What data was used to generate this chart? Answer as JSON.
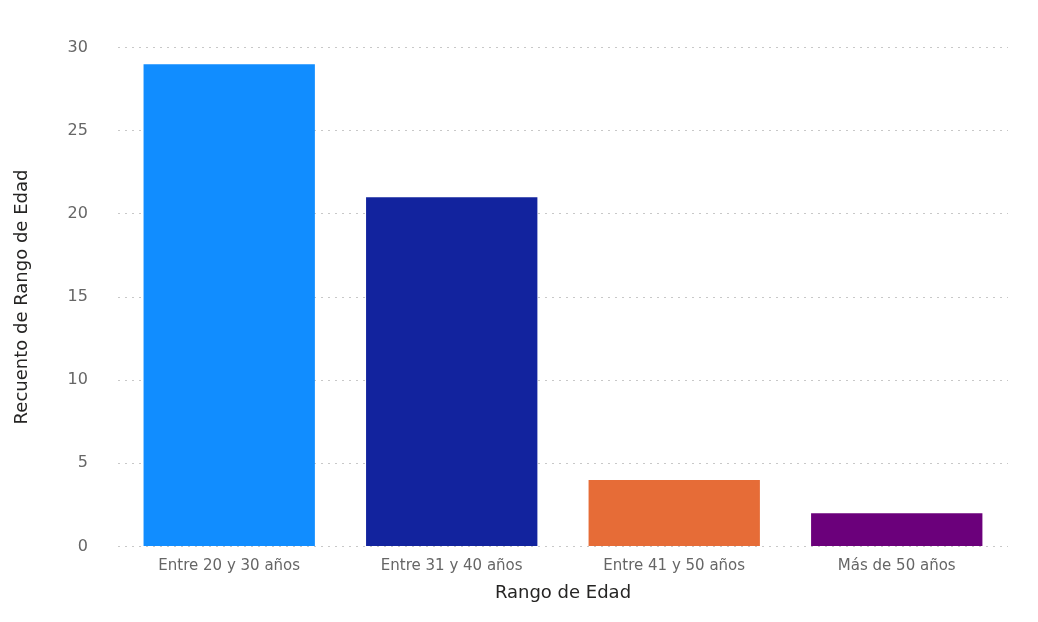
{
  "chart_data": {
    "type": "bar",
    "xlabel": "Rango de Edad",
    "ylabel": "Recuento de Rango de Edad",
    "categories": [
      "Entre 20 y 30 años",
      "Entre 31 y 40 años",
      "Entre 41 y 50 años",
      "Más de 50 años"
    ],
    "values": [
      29,
      21,
      4,
      2
    ],
    "colors": [
      "#118dff",
      "#12239e",
      "#e66c37",
      "#6b007b"
    ],
    "ylim": [
      0,
      30
    ],
    "yticks": [
      0,
      5,
      10,
      15,
      20,
      25,
      30
    ],
    "grid": "y",
    "legend": false
  }
}
